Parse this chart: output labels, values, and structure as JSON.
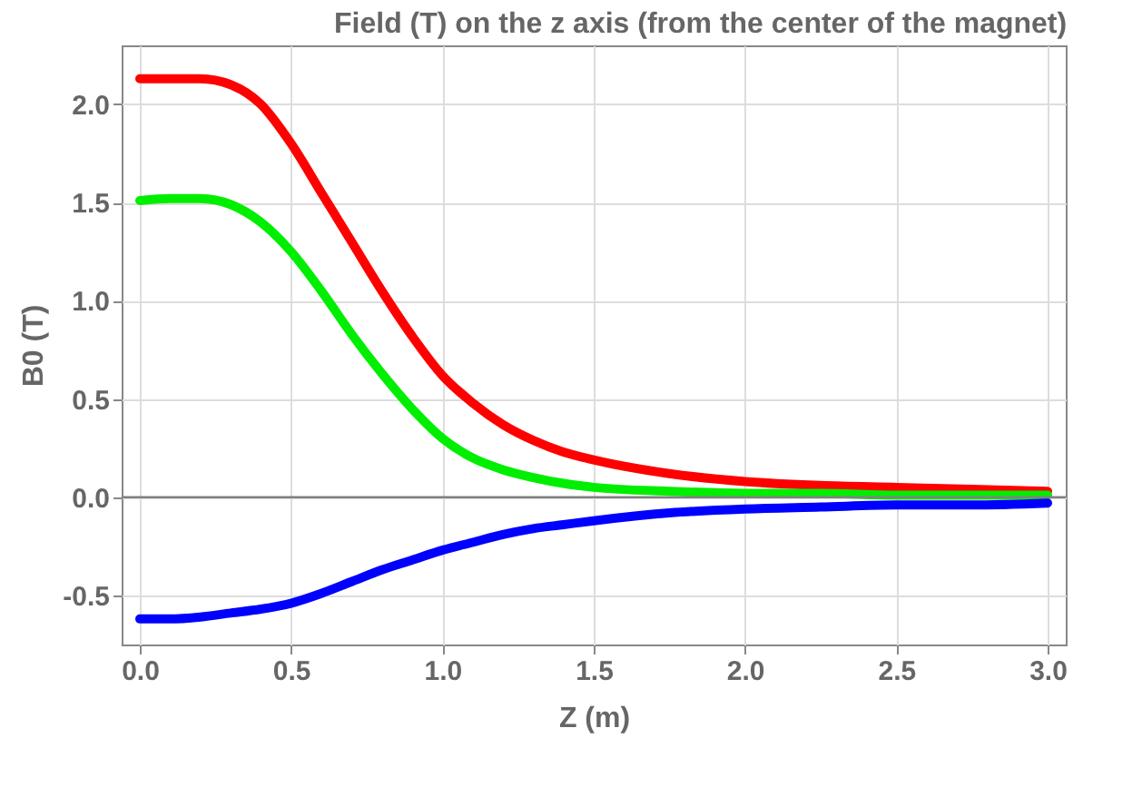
{
  "chart_data": {
    "type": "line",
    "title": "Field (T) on the z axis (from the center of the magnet)",
    "xlabel": "Z (m)",
    "ylabel": "B0 (T)",
    "xlim": [
      -0.06,
      3.06
    ],
    "xticks": [
      {
        "value": 0,
        "label": "0.0"
      },
      {
        "value": 0.5,
        "label": "0.5"
      },
      {
        "value": 1,
        "label": "1.0"
      },
      {
        "value": 1.5,
        "label": "1.5"
      },
      {
        "value": 2,
        "label": "2.0"
      },
      {
        "value": 2.5,
        "label": "2.5"
      },
      {
        "value": 3,
        "label": "3.0"
      }
    ],
    "ylim": [
      -0.75,
      2.3
    ],
    "yticks": [
      {
        "value": -0.5,
        "label": "-0.5"
      },
      {
        "value": 0,
        "label": "0.0"
      },
      {
        "value": 0.5,
        "label": "0.5"
      },
      {
        "value": 1,
        "label": "1.0"
      },
      {
        "value": 1.5,
        "label": "1.5"
      },
      {
        "value": 2,
        "label": "2.0"
      }
    ],
    "grid": true,
    "marker": "none",
    "line_style": "solid",
    "ref_lines": [
      {
        "axis": "y",
        "value": 0,
        "color": "#808080"
      }
    ],
    "x": [
      0,
      0.1,
      0.2,
      0.3,
      0.4,
      0.5,
      0.6,
      0.7,
      0.8,
      0.9,
      1.0,
      1.1,
      1.2,
      1.3,
      1.4,
      1.5,
      1.75,
      2.0,
      2.25,
      2.5,
      2.75,
      3.0
    ],
    "series": [
      {
        "color": "#ff0000",
        "values": [
          2.13,
          2.13,
          2.13,
          2.1,
          2.0,
          1.8,
          1.55,
          1.3,
          1.05,
          0.82,
          0.62,
          0.48,
          0.37,
          0.29,
          0.23,
          0.19,
          0.12,
          0.08,
          0.06,
          0.05,
          0.04,
          0.03
        ]
      },
      {
        "color": "#00ee00",
        "values": [
          1.51,
          1.52,
          1.52,
          1.49,
          1.4,
          1.25,
          1.05,
          0.83,
          0.63,
          0.45,
          0.3,
          0.2,
          0.14,
          0.1,
          0.07,
          0.05,
          0.03,
          0.02,
          0.02,
          0.01,
          0.01,
          0.01
        ]
      },
      {
        "color": "#0000ff",
        "values": [
          -0.62,
          -0.62,
          -0.61,
          -0.59,
          -0.57,
          -0.54,
          -0.49,
          -0.43,
          -0.37,
          -0.32,
          -0.27,
          -0.23,
          -0.19,
          -0.16,
          -0.14,
          -0.12,
          -0.08,
          -0.06,
          -0.05,
          -0.04,
          -0.04,
          -0.03
        ]
      }
    ]
  }
}
